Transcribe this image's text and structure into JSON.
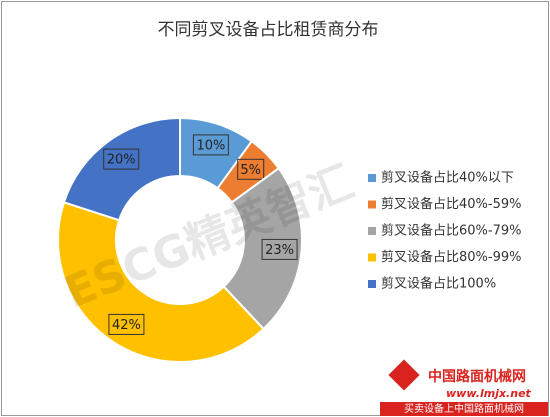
{
  "chart_data": {
    "type": "donut",
    "title": "不同剪叉设备占比租赁商分布",
    "categories": [
      "剪叉设备占比40%以下",
      "剪叉设备占比40%-59%",
      "剪叉设备占比60%-79%",
      "剪叉设备占比80%-99%",
      "剪叉设备占比100%"
    ],
    "values": [
      10,
      5,
      23,
      42,
      20
    ],
    "value_labels": [
      "10%",
      "5%",
      "23%",
      "42%",
      "20%"
    ],
    "colors": [
      "#5b9bd5",
      "#ed7d31",
      "#a5a5a5",
      "#ffc000",
      "#4472c4"
    ],
    "legend": "right"
  },
  "watermark": "ESCG精英智汇",
  "logo": {
    "name": "中国路面机械网",
    "url": "www.lmjx.net",
    "slogan": "买卖设备上中国路面机械网"
  }
}
